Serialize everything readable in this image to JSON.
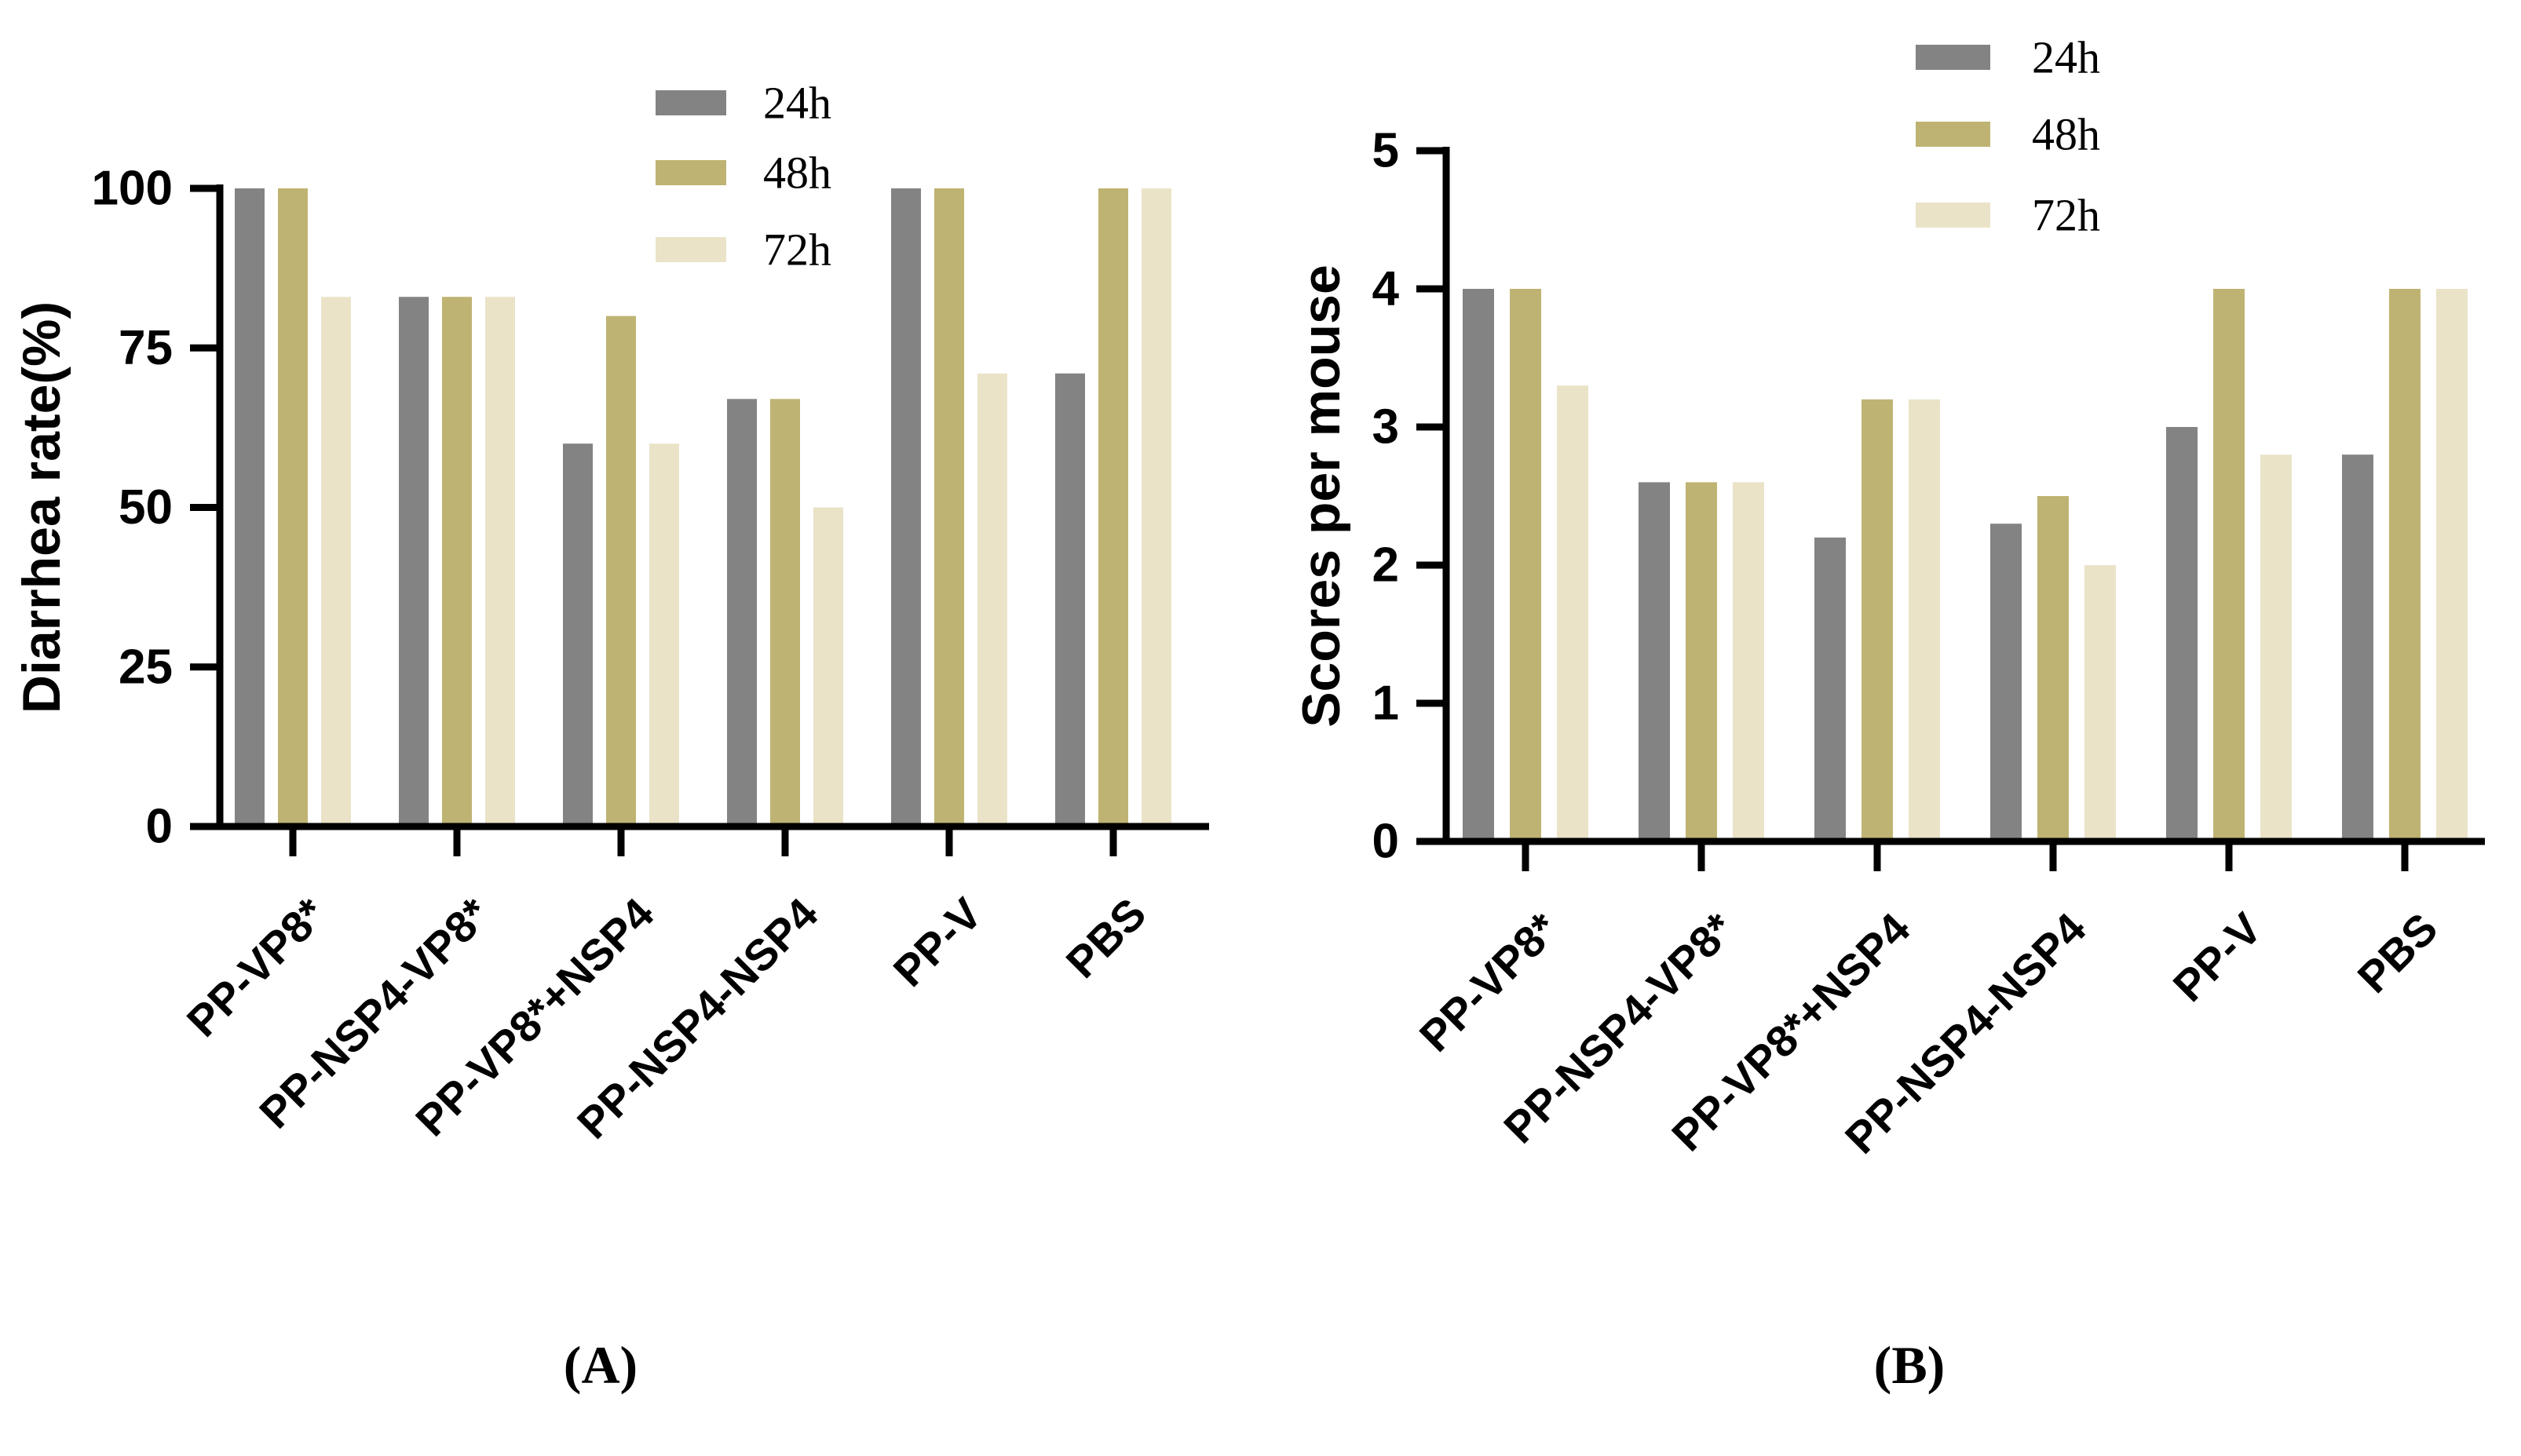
{
  "figure": {
    "captions": {
      "a": "(A)",
      "b": "(B)"
    },
    "legend": {
      "labels": [
        "24h",
        "48h",
        "72h"
      ]
    },
    "colors": {
      "series_24h": "#838383",
      "series_48h": "#BFB373",
      "series_72h": "#EAE3C8",
      "axis": "#000000",
      "text": "#000000"
    },
    "chart_data": [
      {
        "id": "A",
        "type": "bar",
        "title": "",
        "xlabel": "",
        "ylabel": "Diarrhea rate(%)",
        "ylim": [
          0,
          100
        ],
        "yticks": [
          0,
          25,
          50,
          75,
          100
        ],
        "grid": false,
        "legend_position": "top-left-inside",
        "categories": [
          "PP-VP8*",
          "PP-NSP4-VP8*",
          "PP-VP8*+NSP4",
          "PP-NSP4-NSP4",
          "PP-V",
          "PBS"
        ],
        "series": [
          {
            "name": "24h",
            "values": [
              100,
              83,
              60,
              67,
              100,
              71
            ]
          },
          {
            "name": "48h",
            "values": [
              100,
              83,
              80,
              67,
              100,
              100
            ]
          },
          {
            "name": "72h",
            "values": [
              83,
              83,
              60,
              50,
              71,
              100
            ]
          }
        ]
      },
      {
        "id": "B",
        "type": "bar",
        "title": "",
        "xlabel": "",
        "ylabel": "Scores per mouse",
        "ylim": [
          0,
          5
        ],
        "yticks": [
          0,
          1,
          2,
          3,
          4,
          5
        ],
        "grid": false,
        "legend_position": "top-right-inside",
        "categories": [
          "PP-VP8*",
          "PP-NSP4-VP8*",
          "PP-VP8*+NSP4",
          "PP-NSP4-NSP4",
          "PP-V",
          "PBS"
        ],
        "series": [
          {
            "name": "24h",
            "values": [
              4,
              2.6,
              2.2,
              2.3,
              3,
              2.8
            ]
          },
          {
            "name": "48h",
            "values": [
              4,
              2.6,
              3.2,
              2.5,
              4,
              4
            ]
          },
          {
            "name": "72h",
            "values": [
              3.3,
              2.6,
              3.2,
              2,
              2.8,
              4
            ]
          }
        ]
      }
    ]
  }
}
